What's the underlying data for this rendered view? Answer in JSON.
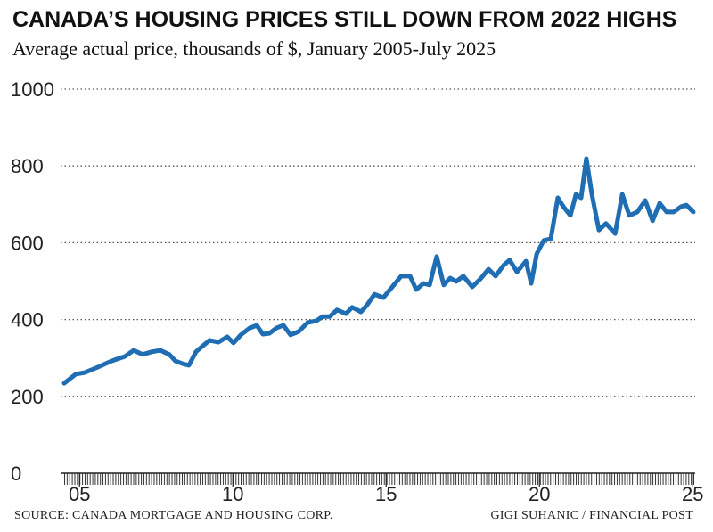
{
  "chart_data": {
    "type": "line",
    "title": "CANADA’S HOUSING PRICES STILL DOWN FROM 2022 HIGHS",
    "subtitle": "Average actual price, thousands of $, January 2005-July 2025",
    "source": "SOURCE: CANADA MORTGAGE AND HOUSING CORP.",
    "credit": "GIGI SUHANIC / FINANCIAL POST",
    "x": [
      2005.0,
      2005.38,
      2005.67,
      2006.1,
      2006.54,
      2006.98,
      2007.27,
      2007.56,
      2007.85,
      2008.14,
      2008.43,
      2008.63,
      2008.87,
      2009.07,
      2009.3,
      2009.53,
      2009.74,
      2010.03,
      2010.32,
      2010.52,
      2010.76,
      2011.05,
      2011.28,
      2011.48,
      2011.69,
      2011.92,
      2012.15,
      2012.38,
      2012.65,
      2012.94,
      2013.23,
      2013.43,
      2013.66,
      2013.9,
      2014.19,
      2014.39,
      2014.68,
      2014.88,
      2015.12,
      2015.41,
      2015.7,
      2015.99,
      2016.28,
      2016.48,
      2016.72,
      2016.92,
      2017.15,
      2017.38,
      2017.59,
      2017.79,
      2018.02,
      2018.31,
      2018.6,
      2018.84,
      2019.07,
      2019.33,
      2019.53,
      2019.77,
      2020.06,
      2020.23,
      2020.41,
      2020.64,
      2020.87,
      2021.1,
      2021.28,
      2021.51,
      2021.69,
      2021.86,
      2022.03,
      2022.21,
      2022.44,
      2022.67,
      2022.97,
      2023.2,
      2023.43,
      2023.69,
      2023.95,
      2024.19,
      2024.42,
      2024.65,
      2024.88,
      2025.12,
      2025.29,
      2025.52
    ],
    "series": [
      {
        "color": "#1f6db3",
        "values": [
          234,
          258,
          262,
          276,
          292,
          304,
          320,
          309,
          316,
          320,
          309,
          292,
          285,
          281,
          316,
          332,
          346,
          341,
          355,
          339,
          360,
          378,
          385,
          362,
          364,
          378,
          385,
          360,
          369,
          392,
          397,
          408,
          408,
          425,
          415,
          432,
          420,
          438,
          466,
          457,
          485,
          513,
          513,
          478,
          494,
          490,
          564,
          490,
          508,
          499,
          513,
          485,
          508,
          531,
          513,
          541,
          555,
          524,
          552,
          494,
          571,
          606,
          610,
          717,
          694,
          671,
          726,
          717,
          819,
          726,
          633,
          650,
          624,
          726,
          671,
          680,
          710,
          657,
          703,
          680,
          680,
          694,
          698,
          680
        ]
      }
    ],
    "xlim": [
      2005,
      2025.55
    ],
    "ylim": [
      0,
      1000
    ],
    "yticks": [
      0,
      200,
      400,
      600,
      800,
      1000
    ],
    "xticks": [
      {
        "value": 2005.5,
        "label": "05"
      },
      {
        "value": 2010.5,
        "label": "10"
      },
      {
        "value": 2015.5,
        "label": "15"
      },
      {
        "value": 2020.5,
        "label": "20"
      },
      {
        "value": 2025.5,
        "label": "25"
      }
    ],
    "grid": true
  }
}
